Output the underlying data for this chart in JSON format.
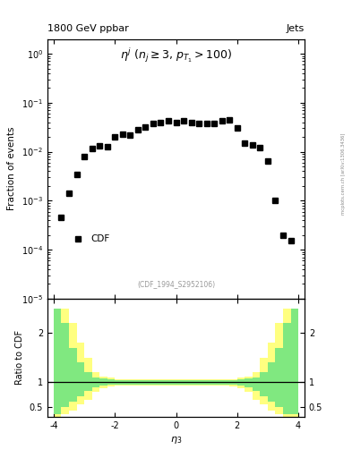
{
  "title_left": "1800 GeV ppbar",
  "title_right": "Jets",
  "annotation": "$\\eta^j$ ($n_j \\geq 3$, $p_{T_1}>100$)",
  "watermark": "(CDF_1994_S2952106)",
  "ylabel_main": "Fraction of events",
  "ylabel_ratio": "Ratio to CDF",
  "xlabel": "$\\eta_3$",
  "legend_label": "CDF",
  "side_text": "mcplots.cern.ch [arXiv:1306.3436]",
  "eta_values": [
    -3.75,
    -3.5,
    -3.25,
    -3.0,
    -2.75,
    -2.5,
    -2.25,
    -2.0,
    -1.75,
    -1.5,
    -1.25,
    -1.0,
    -0.75,
    -0.5,
    -0.25,
    0.0,
    0.25,
    0.5,
    0.75,
    1.0,
    1.25,
    1.5,
    1.75,
    2.0,
    2.25,
    2.5,
    2.75,
    3.0,
    3.25,
    3.5,
    3.75
  ],
  "frac_values": [
    0.00045,
    0.0014,
    0.0035,
    0.008,
    0.0115,
    0.013,
    0.0125,
    0.02,
    0.023,
    0.022,
    0.028,
    0.032,
    0.038,
    0.04,
    0.042,
    0.04,
    0.042,
    0.04,
    0.038,
    0.038,
    0.038,
    0.042,
    0.045,
    0.03,
    0.015,
    0.014,
    0.012,
    0.0065,
    0.001,
    0.0002,
    0.00015
  ],
  "ratio_edges": [
    -4.0,
    -3.75,
    -3.5,
    -3.25,
    -3.0,
    -2.75,
    -2.5,
    -2.25,
    -2.0,
    -1.75,
    -1.5,
    -1.25,
    -1.0,
    -0.75,
    -0.5,
    -0.25,
    0.0,
    0.25,
    0.5,
    0.75,
    1.0,
    1.25,
    1.5,
    1.75,
    2.0,
    2.25,
    2.5,
    2.75,
    3.0,
    3.25,
    3.5,
    3.75,
    4.0
  ],
  "ratio_green_hi": [
    2.5,
    2.2,
    1.7,
    1.4,
    1.2,
    1.1,
    1.08,
    1.06,
    1.05,
    1.04,
    1.04,
    1.04,
    1.04,
    1.04,
    1.04,
    1.04,
    1.04,
    1.04,
    1.04,
    1.04,
    1.04,
    1.04,
    1.04,
    1.05,
    1.06,
    1.08,
    1.1,
    1.2,
    1.4,
    1.7,
    2.2,
    2.5,
    2.5
  ],
  "ratio_green_lo": [
    0.35,
    0.5,
    0.6,
    0.72,
    0.82,
    0.9,
    0.93,
    0.95,
    0.96,
    0.96,
    0.96,
    0.96,
    0.96,
    0.96,
    0.96,
    0.96,
    0.96,
    0.96,
    0.96,
    0.96,
    0.96,
    0.96,
    0.96,
    0.95,
    0.93,
    0.9,
    0.82,
    0.72,
    0.6,
    0.5,
    0.35,
    0.35,
    0.35
  ],
  "ratio_yellow_hi": [
    2.5,
    2.5,
    2.2,
    1.8,
    1.5,
    1.2,
    1.12,
    1.09,
    1.07,
    1.07,
    1.07,
    1.07,
    1.07,
    1.07,
    1.07,
    1.07,
    1.07,
    1.07,
    1.07,
    1.07,
    1.07,
    1.07,
    1.07,
    1.07,
    1.09,
    1.12,
    1.2,
    1.5,
    1.8,
    2.2,
    2.5,
    2.5,
    2.5
  ],
  "ratio_yellow_lo": [
    0.3,
    0.35,
    0.42,
    0.55,
    0.65,
    0.8,
    0.88,
    0.92,
    0.93,
    0.93,
    0.93,
    0.93,
    0.93,
    0.93,
    0.93,
    0.93,
    0.93,
    0.93,
    0.93,
    0.93,
    0.93,
    0.93,
    0.93,
    0.92,
    0.88,
    0.8,
    0.65,
    0.55,
    0.42,
    0.35,
    0.3,
    0.3,
    0.3
  ],
  "main_ylim_lo": 1e-05,
  "main_ylim_hi": 2.0,
  "ratio_ylim_lo": 0.3,
  "ratio_ylim_hi": 2.7,
  "xlim_lo": -4.2,
  "xlim_hi": 4.2,
  "marker_color": "black",
  "marker_size": 4,
  "green_color": "#80E880",
  "yellow_color": "#FFFF80",
  "bg_color": "white"
}
